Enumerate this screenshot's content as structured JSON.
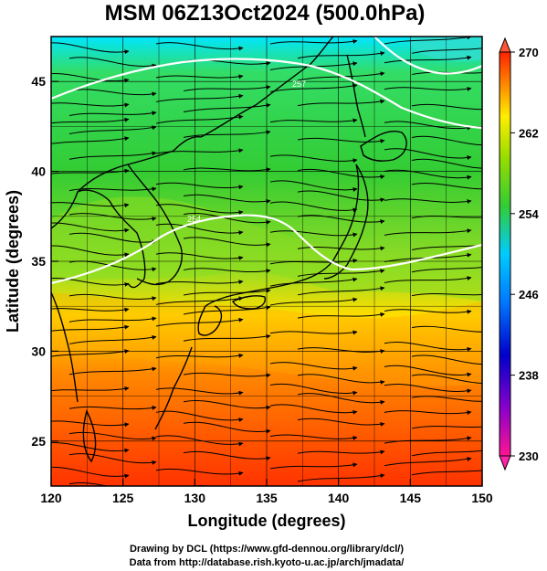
{
  "title": "MSM 06Z13Oct2024 (500.0hPa)",
  "xlabel": "Longitude (degrees)",
  "ylabel": "Latitude  (degrees)",
  "credits": [
    "Drawing by DCL (https://www.gfd-dennou.org/library/dcl/)",
    "Data from http://database.rish.kyoto-u.ac.jp/arch/jmadata/"
  ],
  "map": {
    "lon_range": [
      120,
      150
    ],
    "lat_range": [
      22.5,
      47.5
    ],
    "lon_ticks": [
      "120",
      "125",
      "130",
      "135",
      "140",
      "145",
      "150"
    ],
    "lat_ticks": [
      "25",
      "30",
      "35",
      "40",
      "45"
    ],
    "field": "temperature",
    "contour_labels": [
      "257",
      "254"
    ]
  },
  "colorbar": {
    "min": 230,
    "max": 270,
    "tick_labels": [
      "270",
      "262",
      "254",
      "246",
      "238",
      "230"
    ],
    "colors": [
      "#ff1493",
      "#0000cc",
      "#0077ff",
      "#00ccff",
      "#33cc33",
      "#99dd00",
      "#ffee00",
      "#ff8800",
      "#ff2200"
    ]
  },
  "layer_names": {
    "temperature_fill": "temperature-shading",
    "streamlines": "wind-streamlines",
    "coastline": "coastline",
    "contours": "temperature-contours"
  }
}
